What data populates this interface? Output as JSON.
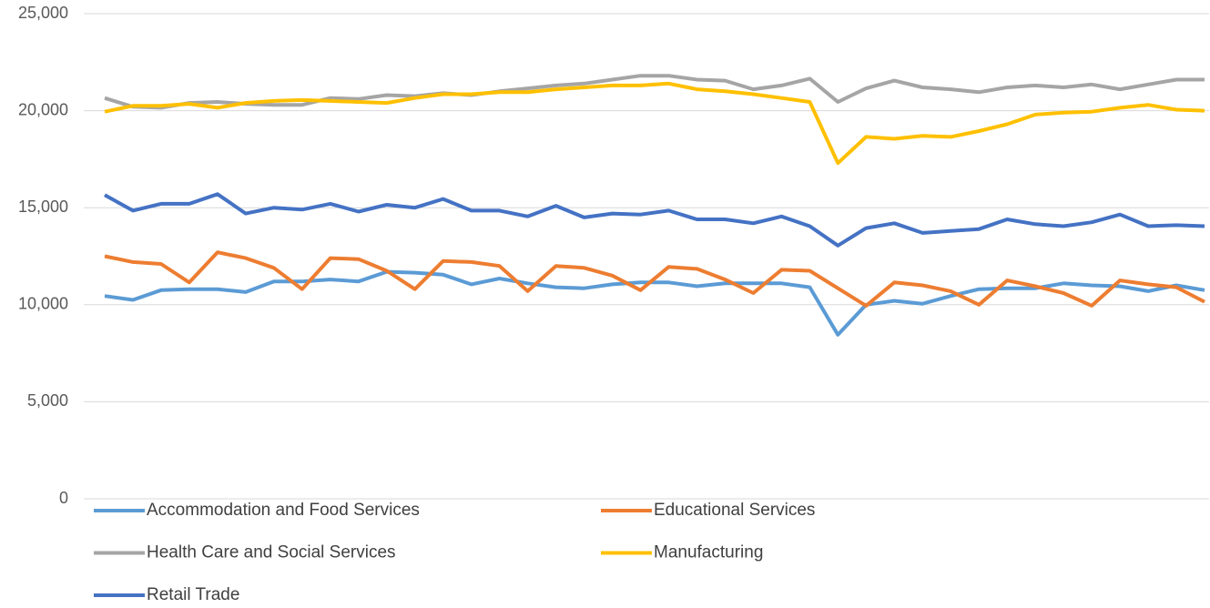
{
  "chart_data": {
    "type": "line",
    "categories": [
      null,
      null,
      null,
      null,
      null,
      null,
      null,
      null,
      null,
      null,
      null,
      null,
      null,
      null,
      null,
      null,
      null,
      null,
      null,
      null,
      null,
      null,
      null,
      null,
      null,
      null,
      null,
      null,
      null,
      null,
      null,
      null,
      null,
      null,
      null,
      null,
      null,
      null,
      null,
      null
    ],
    "series": [
      {
        "name": "Accommodation and Food Services",
        "color": "#5b9bd5",
        "values": [
          10450,
          10250,
          10750,
          10800,
          10800,
          10650,
          11200,
          11200,
          11300,
          11200,
          11700,
          11650,
          11550,
          11050,
          11350,
          11100,
          10900,
          10850,
          11050,
          11150,
          11150,
          10950,
          11100,
          11100,
          11100,
          10900,
          8450,
          10000,
          10200,
          10050,
          10450,
          10800,
          10850,
          10850,
          11100,
          11000,
          10950,
          10700,
          11000,
          10750
        ]
      },
      {
        "name": "Educational Services",
        "color": "#ed7d31",
        "values": [
          12500,
          12200,
          12100,
          11150,
          12700,
          12400,
          11900,
          10800,
          12400,
          12350,
          11750,
          10800,
          12250,
          12200,
          12000,
          10700,
          12000,
          11900,
          11500,
          10750,
          11950,
          11850,
          11300,
          10600,
          11800,
          11750,
          10850,
          9950,
          11150,
          11000,
          10700,
          10000,
          11250,
          10950,
          10600,
          9950,
          11250,
          11050,
          10900,
          10150
        ]
      },
      {
        "name": "Health Care and Social Services",
        "color": "#a5a5a5",
        "values": [
          20650,
          20200,
          20150,
          20400,
          20450,
          20350,
          20300,
          20300,
          20650,
          20600,
          20800,
          20750,
          20900,
          20800,
          21000,
          21150,
          21300,
          21400,
          21600,
          21800,
          21800,
          21600,
          21550,
          21100,
          21300,
          21650,
          20450,
          21150,
          21550,
          21200,
          21100,
          20950,
          21200,
          21300,
          21200,
          21350,
          21100,
          21350,
          21600,
          21600
        ]
      },
      {
        "name": "Manufacturing",
        "color": "#ffc000",
        "values": [
          19950,
          20250,
          20250,
          20350,
          20150,
          20400,
          20500,
          20550,
          20500,
          20450,
          20400,
          20650,
          20850,
          20850,
          20950,
          20950,
          21100,
          21200,
          21300,
          21300,
          21400,
          21100,
          21000,
          20850,
          20650,
          20450,
          17300,
          18650,
          18550,
          18700,
          18650,
          18950,
          19300,
          19800,
          19900,
          19950,
          20150,
          20300,
          20050,
          20000
        ]
      },
      {
        "name": "Retail Trade",
        "color": "#4472c4",
        "values": [
          15650,
          14850,
          15200,
          15200,
          15700,
          14700,
          15000,
          14900,
          15200,
          14800,
          15150,
          15000,
          15450,
          14850,
          14850,
          14550,
          15100,
          14500,
          14700,
          14650,
          14850,
          14400,
          14400,
          14200,
          14550,
          14050,
          13050,
          13950,
          14200,
          13700,
          13800,
          13900,
          14400,
          14150,
          14050,
          14250,
          14650,
          14050,
          14100,
          14050
        ]
      }
    ],
    "ylim": [
      0,
      25000
    ],
    "yticks": [
      0,
      {
        "value": 5000,
        "label": "5,000"
      },
      {
        "value": 10000,
        "label": "10,000"
      },
      {
        "value": 15000,
        "label": "15,000"
      },
      {
        "value": 20000,
        "label": "20,000"
      },
      {
        "value": 25000,
        "label": "25,000"
      }
    ],
    "grid": true,
    "legend": "bottom"
  }
}
